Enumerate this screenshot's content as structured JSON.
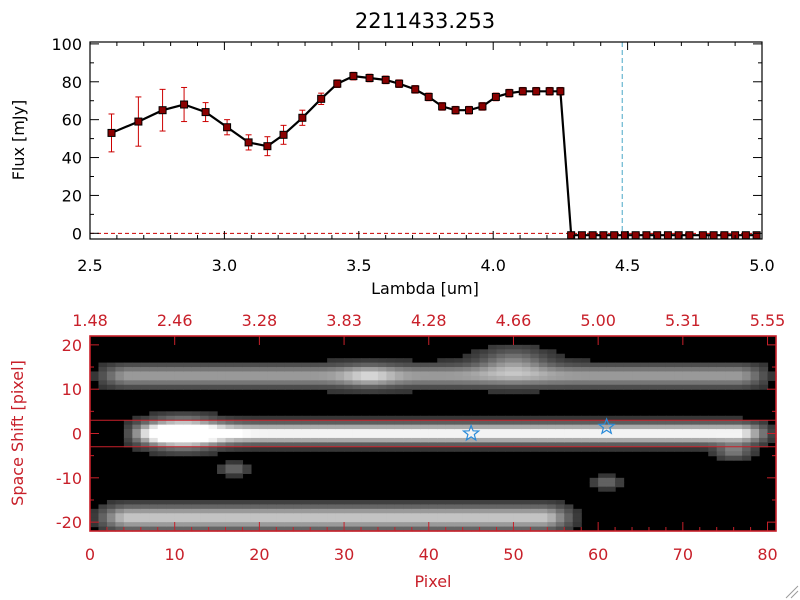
{
  "chart_data": [
    {
      "type": "line",
      "title": "2211433.253",
      "xlabel": "Lambda [um]",
      "ylabel": "Flux [mJy]",
      "xlim": [
        2.5,
        5.0
      ],
      "ylim": [
        -3,
        101
      ],
      "x_ticks": [
        "2.5",
        "3.0",
        "3.5",
        "4.0",
        "4.5",
        "5.0"
      ],
      "x_tick_values": [
        2.5,
        3.0,
        3.5,
        4.0,
        4.5,
        5.0
      ],
      "y_ticks": [
        "0",
        "20",
        "40",
        "60",
        "80",
        "100"
      ],
      "y_tick_values": [
        0,
        20,
        40,
        60,
        80,
        100
      ],
      "line_color": "#000000",
      "marker_color": "#8b0000",
      "errorbar_color": "#cc0000",
      "vline": {
        "x": 4.48,
        "color": "#4aa7c7",
        "style": "dashed"
      },
      "zero_line": {
        "y": 0,
        "color": "#cc0000",
        "style": "dashed"
      },
      "series": [
        {
          "x": [
            2.58,
            2.68,
            2.77,
            2.85,
            2.93,
            3.01,
            3.09,
            3.16,
            3.22,
            3.29,
            3.36,
            3.42,
            3.48,
            3.54,
            3.6,
            3.65,
            3.71,
            3.76,
            3.81,
            3.86,
            3.91,
            3.96,
            4.01,
            4.06,
            4.11,
            4.16,
            4.21,
            4.25,
            4.29,
            4.33,
            4.37,
            4.41,
            4.45,
            4.49,
            4.53,
            4.57,
            4.61,
            4.65,
            4.69,
            4.73,
            4.78,
            4.82,
            4.86,
            4.9,
            4.94,
            4.98
          ],
          "y": [
            53,
            59,
            65,
            68,
            64,
            56,
            48,
            46,
            52,
            61,
            71,
            79,
            83,
            82,
            81,
            79,
            76,
            72,
            67,
            65,
            65,
            67,
            72,
            74,
            75,
            75,
            75,
            75,
            -1,
            -1,
            -1,
            -1,
            -1,
            -1,
            -1,
            -1,
            -1,
            -1,
            -1,
            -1,
            -1,
            -1,
            -1,
            -1,
            -1,
            -1
          ],
          "yerr": [
            10,
            13,
            11,
            9,
            5,
            4,
            4,
            5,
            5,
            4,
            3,
            2,
            2,
            2,
            2,
            2,
            2,
            2,
            2,
            2,
            2,
            2,
            2,
            2,
            2,
            2,
            2,
            2,
            0,
            0,
            0,
            0,
            0,
            0,
            0,
            0,
            0,
            0,
            0,
            0,
            0,
            0,
            0,
            0,
            0,
            0
          ]
        }
      ]
    },
    {
      "type": "heatmap",
      "xlabel": "Pixel",
      "ylabel": "Space Shift [pixel]",
      "axis_color": "#c8202a",
      "xlim": [
        0,
        81
      ],
      "ylim": [
        -22,
        22
      ],
      "x_ticks": [
        "0",
        "10",
        "20",
        "30",
        "40",
        "50",
        "60",
        "70",
        "80"
      ],
      "x_tick_values": [
        0,
        10,
        20,
        30,
        40,
        50,
        60,
        70,
        80
      ],
      "y_ticks": [
        "-20",
        "-10",
        "0",
        "10",
        "20"
      ],
      "y_tick_values": [
        -20,
        -10,
        0,
        10,
        20
      ],
      "top_axis_ticks": [
        "1.48",
        "2.46",
        "3.28",
        "3.83",
        "4.28",
        "4.66",
        "5.00",
        "5.31",
        "5.55"
      ],
      "top_axis_tick_values": [
        0,
        10,
        20,
        30,
        40,
        50,
        60,
        70,
        80
      ],
      "aperture_lines": [
        3,
        -3
      ],
      "markers": [
        {
          "x": 45,
          "y": 0,
          "shape": "star",
          "color": "#2a8bd9"
        },
        {
          "x": 61,
          "y": 1.5,
          "shape": "star",
          "color": "#2a8bd9"
        }
      ],
      "bands": [
        {
          "x0": 0,
          "x1": 81,
          "yc": 13,
          "width": 5.5,
          "peak": 0.55
        },
        {
          "x0": 4,
          "x1": 81,
          "yc": 0,
          "width": 5,
          "peak": 1.0
        },
        {
          "x0": 0,
          "x1": 58,
          "yc": -19,
          "width": 6,
          "peak": 0.75
        }
      ],
      "blobs": [
        {
          "x": 11,
          "y": 0,
          "r": 4,
          "amp": 0.9
        },
        {
          "x": 33,
          "y": 13,
          "r": 3,
          "amp": 0.3
        },
        {
          "x": 50,
          "y": 16,
          "r": 4,
          "amp": 0.4
        },
        {
          "x": 76,
          "y": -4,
          "r": 2,
          "amp": 0.4
        },
        {
          "x": 17,
          "y": -8,
          "r": 1.5,
          "amp": 0.35
        },
        {
          "x": 61,
          "y": -11,
          "r": 1.5,
          "amp": 0.35
        }
      ]
    }
  ]
}
